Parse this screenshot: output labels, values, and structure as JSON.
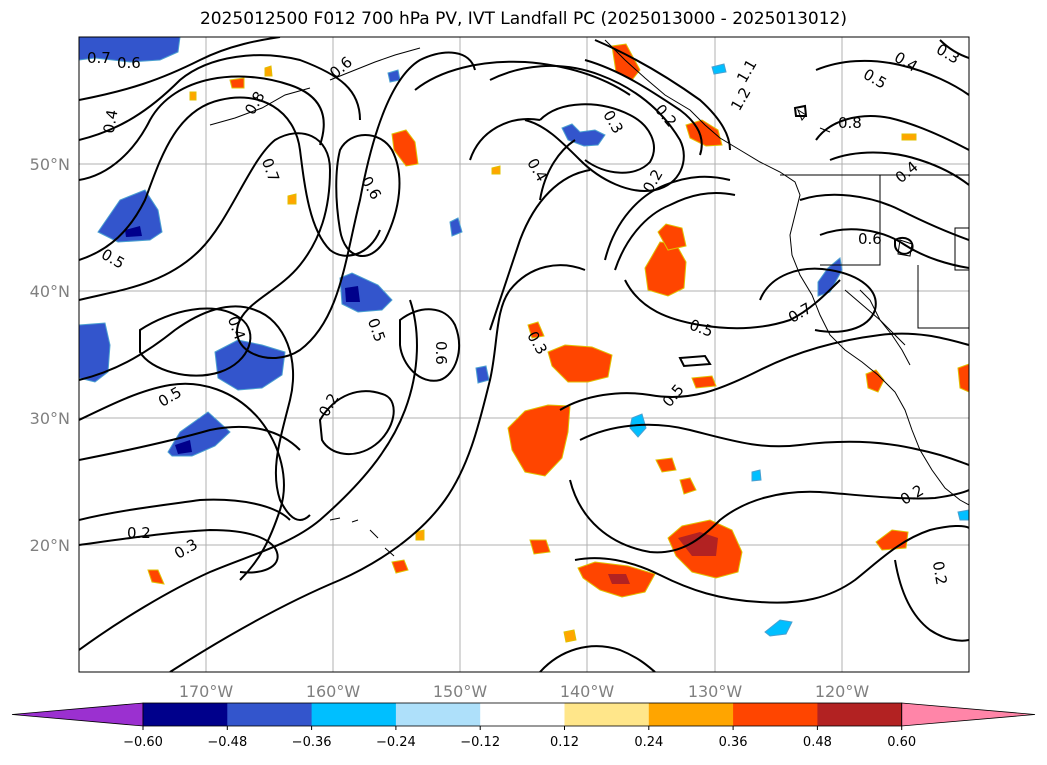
{
  "title": "2025012500 F012 700 hPa PV, IVT Landfall PC (2025013000 - 2025013012)",
  "map": {
    "lat_labels": [
      "50°N",
      "40°N",
      "30°N",
      "20°N"
    ],
    "lon_labels": [
      "170°W",
      "160°W",
      "150°W",
      "140°W",
      "130°W",
      "120°W"
    ],
    "lat_range": [
      10,
      60
    ],
    "lon_range": [
      -180,
      -110
    ]
  },
  "contour_labels": [
    "0.7",
    "0.6",
    "0.4",
    "0.8",
    "0.7",
    "0.6",
    "0.5",
    "0.4",
    "0.5",
    "0.5",
    "0.2",
    "0.3",
    "0.2",
    "0.6",
    "0.6",
    "0.4",
    "0.2",
    "0.3",
    "0.2",
    "0.5",
    "0.5",
    "0.7",
    "0.8",
    "1.2",
    "1.1",
    "0.4",
    "0.5",
    "0.3",
    "0.6",
    "0.2",
    "0.2",
    "0.3",
    "0.4"
  ],
  "colorbar": {
    "ticks": [
      "−0.60",
      "−0.48",
      "−0.36",
      "−0.24",
      "−0.12",
      "0.12",
      "0.24",
      "0.36",
      "0.48",
      "0.60"
    ],
    "colors": [
      "#9b30d0",
      "#00008b",
      "#3355cc",
      "#00bfff",
      "#aee0fa",
      "#ffffff",
      "#ffe68a",
      "#ffa500",
      "#ff4500",
      "#b22222",
      "#ff85a8"
    ],
    "extend": "both"
  },
  "colors": {
    "pos_mid": "#ff4500",
    "pos_high": "#b22222",
    "pos_low": "#ffa500",
    "neg_mid": "#3355cc",
    "neg_low": "#00bfff",
    "neg_high": "#00008b"
  }
}
